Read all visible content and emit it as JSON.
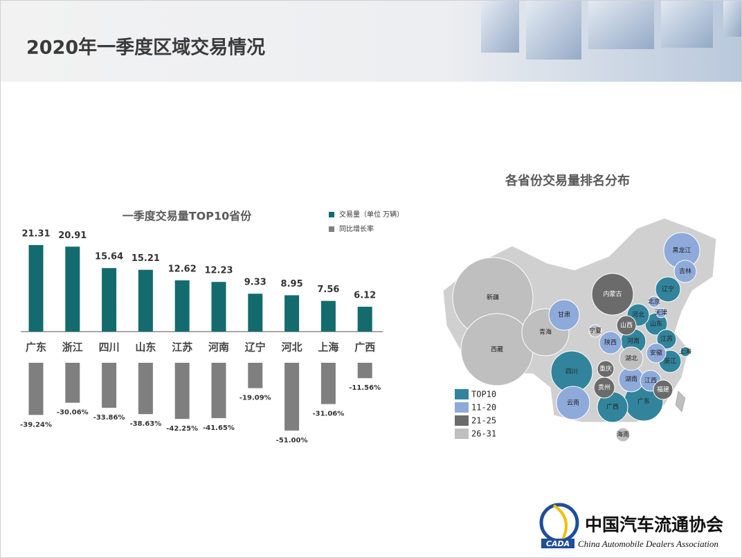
{
  "header": {
    "title": "2020年一季度区域交易情况"
  },
  "chart_data": {
    "type": "bar",
    "title": "一季度交易量TOP10省份",
    "categories": [
      "广东",
      "浙江",
      "四川",
      "山东",
      "江苏",
      "河南",
      "辽宁",
      "河北",
      "上海",
      "广西"
    ],
    "series": [
      {
        "name": "交易量（单位 万辆）",
        "color": "#136b6e",
        "values": [
          21.31,
          20.91,
          15.64,
          15.21,
          12.62,
          12.23,
          9.33,
          8.95,
          7.56,
          6.12
        ]
      },
      {
        "name": "同比增长率",
        "color": "#7f7f7f",
        "values": [
          -39.24,
          -30.06,
          -33.86,
          -38.63,
          -42.25,
          -41.65,
          -19.09,
          -51.0,
          -31.06,
          -11.56
        ],
        "value_labels": [
          "-39.24%",
          "-30.06%",
          "-33.86%",
          "-38.63%",
          "-42.25%",
          "-41.65%",
          "-19.09%",
          "-51.00%",
          "-31.06%",
          "-11.56%"
        ]
      }
    ]
  },
  "map": {
    "title": "各省份交易量排名分布",
    "legend": [
      {
        "label": "TOP10",
        "color": "#31849b",
        "provinces": [
          "广东",
          "浙江",
          "四川",
          "山东",
          "江苏",
          "河南",
          "辽宁",
          "河北",
          "上海",
          "广西"
        ]
      },
      {
        "label": "11-20",
        "color": "#8eaadb",
        "provinces": [
          "黑龙江",
          "吉林",
          "北京",
          "天津",
          "甘肃",
          "陕西",
          "安徽",
          "湖南",
          "江西",
          "云南"
        ]
      },
      {
        "label": "21-25",
        "color": "#6b6b6b",
        "provinces": [
          "内蒙古",
          "山西",
          "重庆",
          "贵州",
          "福建"
        ]
      },
      {
        "label": "26-31",
        "color": "#bfbfbf",
        "provinces": [
          "新疆",
          "西藏",
          "青海",
          "宁夏",
          "湖北",
          "海南"
        ]
      }
    ]
  },
  "footer": {
    "logo_text": "CADA",
    "org_cn": "中国汽车流通协会",
    "org_en": "China Automobile Dealers Association"
  }
}
